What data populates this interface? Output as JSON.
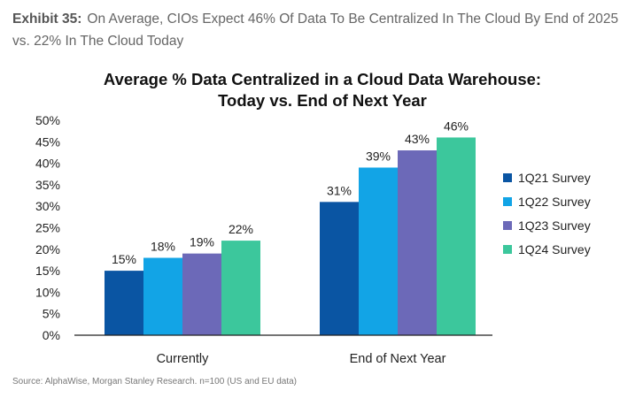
{
  "exhibit": {
    "label": "Exhibit 35:",
    "text": "On Average, CIOs Expect 46% Of Data To Be Centralized In The Cloud By End of 2025 vs. 22% In The Cloud Today"
  },
  "source": "Source: AlphaWise, Morgan Stanley Research. n=100 (US and EU data)",
  "chart_data": {
    "type": "bar",
    "title_lines": [
      "Average % Data Centralized in a Cloud Data Warehouse:",
      "Today vs. End of Next Year"
    ],
    "categories": [
      "Currently",
      "End of Next Year"
    ],
    "series": [
      {
        "name": "1Q21 Survey",
        "values": [
          15,
          31
        ],
        "color": "#0a55a3"
      },
      {
        "name": "1Q22 Survey",
        "values": [
          18,
          39
        ],
        "color": "#12a4e6"
      },
      {
        "name": "1Q23 Survey",
        "values": [
          19,
          43
        ],
        "color": "#6c69b8"
      },
      {
        "name": "1Q24 Survey",
        "values": [
          22,
          46
        ],
        "color": "#3cc79c"
      }
    ],
    "data_labels": [
      [
        "15%",
        "31%"
      ],
      [
        "18%",
        "39%"
      ],
      [
        "19%",
        "43%"
      ],
      [
        "22%",
        "46%"
      ]
    ],
    "yticks": [
      "0%",
      "5%",
      "10%",
      "15%",
      "20%",
      "25%",
      "30%",
      "35%",
      "40%",
      "45%",
      "50%"
    ],
    "ylim": [
      0,
      50
    ],
    "grid": false,
    "legend_position": "right"
  }
}
